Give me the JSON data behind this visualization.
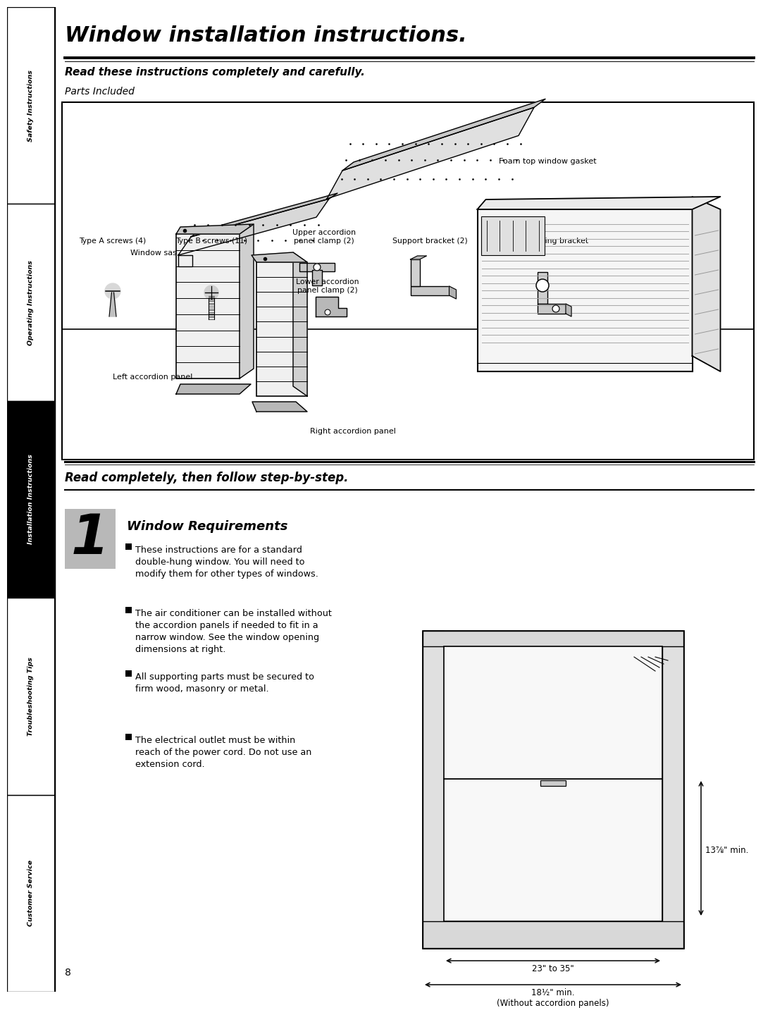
{
  "page_bg": "#ffffff",
  "sidebar_labels": [
    "Safety Instructions",
    "Operating Instructions",
    "Installation Instructions",
    "Troubleshooting Tips",
    "Customer Service"
  ],
  "sidebar_active": 2,
  "main_title": "Window installation instructions.",
  "subtitle": "Read these instructions completely and carefully.",
  "parts_label": "Parts Included",
  "bottom_parts_labels": [
    "Type A screws (4)",
    "Type B screws (11)",
    "Upper accordion\npanel clamp (2)",
    "Support bracket (2)",
    "Window locking bracket"
  ],
  "bottom_parts_extra": "Lower accordion\npanel clamp (2)",
  "section_header": "Read completely, then follow step-by-step.",
  "step_number": "1",
  "step_title": "Window Requirements",
  "step_bullets": [
    "These instructions are for a standard\ndouble-hung window. You will need to\nmodify them for other types of windows.",
    "The air conditioner can be installed without\nthe accordion panels if needed to fit in a\nnarrow window. See the window opening\ndimensions at right.",
    "All supporting parts must be secured to\nfirm wood, masonry or metal.",
    "The electrical outlet must be within\nreach of the power cord. Do not use an\nextension cord."
  ],
  "dim_label1": "13⅞\" min.",
  "dim_label2": "23\" to 35\"",
  "dim_label3": "18½\" min.\n(Without accordion panels)",
  "page_number": "8",
  "sidebar_colors_bg": [
    "#ffffff",
    "#ffffff",
    "#000000",
    "#ffffff",
    "#ffffff"
  ],
  "sidebar_colors_fg": [
    "#000000",
    "#000000",
    "#ffffff",
    "#000000",
    "#000000"
  ]
}
